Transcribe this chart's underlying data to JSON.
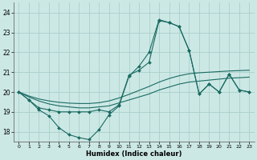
{
  "xlabel": "Humidex (Indice chaleur)",
  "background_color": "#cce8e5",
  "grid_color": "#aad0cc",
  "line_color": "#1a6b62",
  "xlim": [
    -0.5,
    23.5
  ],
  "ylim": [
    17.5,
    24.5
  ],
  "yticks": [
    18,
    19,
    20,
    21,
    22,
    23,
    24
  ],
  "xticks": [
    0,
    1,
    2,
    3,
    4,
    5,
    6,
    7,
    8,
    9,
    10,
    11,
    12,
    13,
    14,
    15,
    16,
    17,
    18,
    19,
    20,
    21,
    22,
    23
  ],
  "series": [
    {
      "x": [
        0,
        1,
        2,
        3,
        4,
        5,
        6,
        7,
        8,
        9,
        10,
        11,
        12,
        13,
        14,
        15,
        16,
        17,
        18,
        19,
        20,
        21,
        22,
        23
      ],
      "y": [
        20.0,
        19.6,
        19.1,
        18.8,
        18.2,
        17.85,
        17.7,
        17.6,
        18.1,
        18.85,
        19.3,
        20.8,
        21.3,
        22.0,
        23.65,
        23.5,
        23.3,
        22.1,
        19.9,
        20.4,
        20.0,
        20.9,
        20.1,
        20.0
      ],
      "marker": true
    },
    {
      "x": [
        0,
        1,
        2,
        3,
        4,
        5,
        6,
        7,
        8,
        9,
        10,
        11,
        12,
        13,
        14,
        15,
        16,
        17,
        18,
        19,
        20,
        21,
        22,
        23
      ],
      "y": [
        20.0,
        19.6,
        19.2,
        19.1,
        19.0,
        19.0,
        19.0,
        19.0,
        19.1,
        19.0,
        19.35,
        20.85,
        21.1,
        21.5,
        23.6,
        23.5,
        23.3,
        22.1,
        19.9,
        20.4,
        20.0,
        20.9,
        20.1,
        20.0
      ],
      "marker": true
    },
    {
      "x": [
        0,
        1,
        2,
        3,
        4,
        5,
        6,
        7,
        8,
        9,
        10,
        11,
        12,
        13,
        14,
        15,
        16,
        17,
        18,
        19,
        20,
        21,
        22,
        23
      ],
      "y": [
        20.0,
        19.75,
        19.55,
        19.4,
        19.3,
        19.25,
        19.2,
        19.2,
        19.25,
        19.3,
        19.45,
        19.6,
        19.75,
        19.9,
        20.1,
        20.25,
        20.4,
        20.5,
        20.55,
        20.6,
        20.65,
        20.7,
        20.72,
        20.75
      ],
      "marker": false
    },
    {
      "x": [
        0,
        1,
        2,
        3,
        4,
        5,
        6,
        7,
        8,
        9,
        10,
        11,
        12,
        13,
        14,
        15,
        16,
        17,
        18,
        19,
        20,
        21,
        22,
        23
      ],
      "y": [
        20.0,
        19.8,
        19.65,
        19.55,
        19.48,
        19.44,
        19.42,
        19.42,
        19.46,
        19.55,
        19.7,
        19.88,
        20.08,
        20.28,
        20.5,
        20.68,
        20.82,
        20.92,
        20.97,
        21.0,
        21.03,
        21.06,
        21.08,
        21.1
      ],
      "marker": false
    }
  ]
}
